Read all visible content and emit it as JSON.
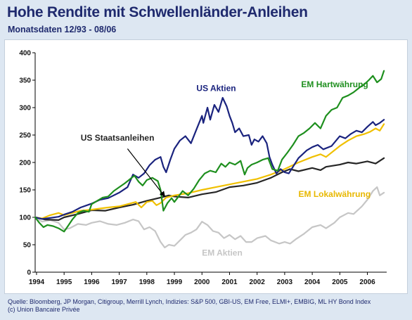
{
  "title": "Hohe Rendite mit Schwellenländer-Anleihen",
  "subtitle": "Monatsdaten 12/93 - 08/06",
  "footer": {
    "source": "Quelle: Bloomberg, JP Morgan, Citigroup, Merrill Lynch, Indizies: S&P 500, GBI-US, EM Free, ELMI+, EMBIG, ML HY Bond Index",
    "copyright": "(c) Union Bancaire Privée"
  },
  "chart_data": {
    "type": "line",
    "title": "Hohe Rendite mit Schwellenländer-Anleihen",
    "subtitle": "Monatsdaten 12/93 - 08/06",
    "xlim": [
      1993.95,
      2006.7
    ],
    "ylim": [
      0,
      400
    ],
    "x_ticks": [
      1994,
      1995,
      1996,
      1997,
      1998,
      1999,
      2000,
      2001,
      2002,
      2003,
      2004,
      2005,
      2006
    ],
    "x_tick_labels": [
      "1994",
      "1995",
      "1996",
      "1997",
      "1998",
      "1999",
      "2000",
      "2001",
      "2002",
      "2003",
      "2004",
      "2005",
      "2006"
    ],
    "y_ticks": [
      0,
      50,
      100,
      150,
      200,
      250,
      300,
      350,
      400
    ],
    "y_tick_labels": [
      "0",
      "50",
      "100",
      "150",
      "200",
      "250",
      "300",
      "350",
      "400"
    ],
    "grid": false,
    "series": [
      {
        "name": "EM Aktien",
        "color": "#c6c6c6",
        "points": [
          [
            1993.95,
            100
          ],
          [
            1994.2,
            92
          ],
          [
            1994.5,
            95
          ],
          [
            1994.8,
            90
          ],
          [
            1995.0,
            78
          ],
          [
            1995.2,
            80
          ],
          [
            1995.5,
            88
          ],
          [
            1995.8,
            86
          ],
          [
            1996.0,
            90
          ],
          [
            1996.3,
            93
          ],
          [
            1996.6,
            88
          ],
          [
            1996.9,
            86
          ],
          [
            1997.2,
            90
          ],
          [
            1997.5,
            96
          ],
          [
            1997.7,
            93
          ],
          [
            1997.9,
            78
          ],
          [
            1998.1,
            82
          ],
          [
            1998.3,
            75
          ],
          [
            1998.5,
            55
          ],
          [
            1998.65,
            45
          ],
          [
            1998.8,
            50
          ],
          [
            1999.0,
            48
          ],
          [
            1999.2,
            58
          ],
          [
            1999.4,
            68
          ],
          [
            1999.6,
            72
          ],
          [
            1999.8,
            78
          ],
          [
            2000.0,
            92
          ],
          [
            2000.2,
            86
          ],
          [
            2000.4,
            75
          ],
          [
            2000.6,
            72
          ],
          [
            2000.8,
            62
          ],
          [
            2001.0,
            68
          ],
          [
            2001.2,
            60
          ],
          [
            2001.4,
            66
          ],
          [
            2001.6,
            55
          ],
          [
            2001.8,
            55
          ],
          [
            2002.0,
            62
          ],
          [
            2002.3,
            66
          ],
          [
            2002.5,
            58
          ],
          [
            2002.8,
            52
          ],
          [
            2003.0,
            55
          ],
          [
            2003.2,
            52
          ],
          [
            2003.4,
            60
          ],
          [
            2003.7,
            70
          ],
          [
            2004.0,
            82
          ],
          [
            2004.3,
            86
          ],
          [
            2004.5,
            80
          ],
          [
            2004.8,
            90
          ],
          [
            2005.0,
            100
          ],
          [
            2005.3,
            108
          ],
          [
            2005.5,
            106
          ],
          [
            2005.8,
            120
          ],
          [
            2006.0,
            132
          ],
          [
            2006.2,
            148
          ],
          [
            2006.35,
            155
          ],
          [
            2006.45,
            140
          ],
          [
            2006.6,
            145
          ]
        ]
      },
      {
        "name": "US Staatsanleihen",
        "color": "#262626",
        "points": [
          [
            1993.95,
            100
          ],
          [
            1994.3,
            96
          ],
          [
            1994.8,
            95
          ],
          [
            1995.0,
            100
          ],
          [
            1995.5,
            106
          ],
          [
            1996.0,
            113
          ],
          [
            1996.5,
            112
          ],
          [
            1997.0,
            118
          ],
          [
            1997.5,
            123
          ],
          [
            1998.0,
            130
          ],
          [
            1998.5,
            136
          ],
          [
            1998.8,
            140
          ],
          [
            1999.0,
            138
          ],
          [
            1999.5,
            136
          ],
          [
            2000.0,
            142
          ],
          [
            2000.5,
            146
          ],
          [
            2001.0,
            155
          ],
          [
            2001.5,
            158
          ],
          [
            2002.0,
            163
          ],
          [
            2002.5,
            172
          ],
          [
            2002.9,
            182
          ],
          [
            2003.2,
            188
          ],
          [
            2003.5,
            184
          ],
          [
            2004.0,
            190
          ],
          [
            2004.3,
            186
          ],
          [
            2004.5,
            192
          ],
          [
            2005.0,
            196
          ],
          [
            2005.3,
            200
          ],
          [
            2005.6,
            198
          ],
          [
            2006.0,
            202
          ],
          [
            2006.3,
            198
          ],
          [
            2006.6,
            208
          ]
        ]
      },
      {
        "name": "EM Lokalwährung",
        "color": "#f0c000",
        "points": [
          [
            1993.95,
            100
          ],
          [
            1994.2,
            98
          ],
          [
            1994.5,
            104
          ],
          [
            1994.8,
            108
          ],
          [
            1995.0,
            104
          ],
          [
            1995.3,
            108
          ],
          [
            1995.6,
            112
          ],
          [
            1996.0,
            114
          ],
          [
            1996.3,
            116
          ],
          [
            1996.6,
            118
          ],
          [
            1997.0,
            120
          ],
          [
            1997.3,
            124
          ],
          [
            1997.6,
            128
          ],
          [
            1997.8,
            118
          ],
          [
            1998.0,
            128
          ],
          [
            1998.2,
            130
          ],
          [
            1998.35,
            122
          ],
          [
            1998.5,
            126
          ],
          [
            1998.7,
            136
          ],
          [
            1999.0,
            140
          ],
          [
            1999.5,
            144
          ],
          [
            2000.0,
            150
          ],
          [
            2000.5,
            155
          ],
          [
            2001.0,
            160
          ],
          [
            2001.5,
            165
          ],
          [
            2002.0,
            170
          ],
          [
            2002.5,
            178
          ],
          [
            2003.0,
            188
          ],
          [
            2003.5,
            200
          ],
          [
            2004.0,
            210
          ],
          [
            2004.3,
            215
          ],
          [
            2004.5,
            210
          ],
          [
            2005.0,
            230
          ],
          [
            2005.3,
            240
          ],
          [
            2005.6,
            248
          ],
          [
            2005.9,
            252
          ],
          [
            2006.1,
            256
          ],
          [
            2006.3,
            262
          ],
          [
            2006.45,
            258
          ],
          [
            2006.6,
            270
          ]
        ]
      },
      {
        "name": "US Aktien",
        "color": "#1a237e",
        "points": [
          [
            1993.95,
            100
          ],
          [
            1994.2,
            97
          ],
          [
            1994.5,
            99
          ],
          [
            1994.8,
            101
          ],
          [
            1995.0,
            105
          ],
          [
            1995.3,
            110
          ],
          [
            1995.6,
            118
          ],
          [
            1996.0,
            125
          ],
          [
            1996.3,
            132
          ],
          [
            1996.6,
            135
          ],
          [
            1997.0,
            145
          ],
          [
            1997.3,
            155
          ],
          [
            1997.5,
            178
          ],
          [
            1997.7,
            172
          ],
          [
            1997.9,
            180
          ],
          [
            1998.1,
            195
          ],
          [
            1998.3,
            205
          ],
          [
            1998.5,
            210
          ],
          [
            1998.6,
            192
          ],
          [
            1998.7,
            182
          ],
          [
            1998.85,
            205
          ],
          [
            1999.0,
            225
          ],
          [
            1999.2,
            240
          ],
          [
            1999.4,
            248
          ],
          [
            1999.6,
            235
          ],
          [
            1999.8,
            260
          ],
          [
            2000.0,
            285
          ],
          [
            2000.05,
            272
          ],
          [
            2000.2,
            300
          ],
          [
            2000.3,
            278
          ],
          [
            2000.45,
            305
          ],
          [
            2000.6,
            292
          ],
          [
            2000.75,
            318
          ],
          [
            2000.9,
            302
          ],
          [
            2001.0,
            285
          ],
          [
            2001.1,
            272
          ],
          [
            2001.2,
            255
          ],
          [
            2001.35,
            262
          ],
          [
            2001.5,
            248
          ],
          [
            2001.7,
            250
          ],
          [
            2001.8,
            232
          ],
          [
            2001.9,
            242
          ],
          [
            2002.05,
            238
          ],
          [
            2002.2,
            248
          ],
          [
            2002.35,
            235
          ],
          [
            2002.45,
            210
          ],
          [
            2002.55,
            196
          ],
          [
            2002.7,
            180
          ],
          [
            2002.85,
            188
          ],
          [
            2003.0,
            182
          ],
          [
            2003.15,
            180
          ],
          [
            2003.3,
            192
          ],
          [
            2003.5,
            208
          ],
          [
            2003.8,
            222
          ],
          [
            2004.0,
            228
          ],
          [
            2004.2,
            232
          ],
          [
            2004.4,
            224
          ],
          [
            2004.7,
            230
          ],
          [
            2004.9,
            242
          ],
          [
            2005.0,
            248
          ],
          [
            2005.2,
            244
          ],
          [
            2005.4,
            252
          ],
          [
            2005.6,
            258
          ],
          [
            2005.8,
            255
          ],
          [
            2006.0,
            265
          ],
          [
            2006.2,
            274
          ],
          [
            2006.3,
            268
          ],
          [
            2006.45,
            272
          ],
          [
            2006.6,
            278
          ]
        ]
      },
      {
        "name": "EM Hartwährung",
        "color": "#1e8f1e",
        "points": [
          [
            1993.95,
            100
          ],
          [
            1994.1,
            90
          ],
          [
            1994.25,
            82
          ],
          [
            1994.4,
            86
          ],
          [
            1994.6,
            84
          ],
          [
            1994.8,
            80
          ],
          [
            1995.0,
            74
          ],
          [
            1995.15,
            85
          ],
          [
            1995.3,
            96
          ],
          [
            1995.5,
            108
          ],
          [
            1995.7,
            112
          ],
          [
            1995.9,
            110
          ],
          [
            1996.0,
            124
          ],
          [
            1996.2,
            130
          ],
          [
            1996.4,
            136
          ],
          [
            1996.6,
            138
          ],
          [
            1996.8,
            148
          ],
          [
            1997.0,
            155
          ],
          [
            1997.2,
            162
          ],
          [
            1997.4,
            170
          ],
          [
            1997.55,
            176
          ],
          [
            1997.7,
            165
          ],
          [
            1997.85,
            158
          ],
          [
            1998.0,
            168
          ],
          [
            1998.2,
            172
          ],
          [
            1998.4,
            166
          ],
          [
            1998.5,
            150
          ],
          [
            1998.6,
            112
          ],
          [
            1998.75,
            126
          ],
          [
            1998.9,
            135
          ],
          [
            1999.0,
            128
          ],
          [
            1999.15,
            138
          ],
          [
            1999.3,
            148
          ],
          [
            1999.5,
            140
          ],
          [
            1999.7,
            152
          ],
          [
            1999.9,
            168
          ],
          [
            2000.1,
            180
          ],
          [
            2000.3,
            185
          ],
          [
            2000.5,
            182
          ],
          [
            2000.7,
            198
          ],
          [
            2000.85,
            192
          ],
          [
            2001.0,
            200
          ],
          [
            2001.2,
            196
          ],
          [
            2001.4,
            203
          ],
          [
            2001.55,
            178
          ],
          [
            2001.65,
            190
          ],
          [
            2001.8,
            196
          ],
          [
            2002.0,
            200
          ],
          [
            2002.2,
            205
          ],
          [
            2002.4,
            208
          ],
          [
            2002.55,
            188
          ],
          [
            2002.75,
            185
          ],
          [
            2002.9,
            205
          ],
          [
            2003.1,
            218
          ],
          [
            2003.3,
            232
          ],
          [
            2003.5,
            248
          ],
          [
            2003.7,
            254
          ],
          [
            2003.9,
            262
          ],
          [
            2004.1,
            272
          ],
          [
            2004.3,
            262
          ],
          [
            2004.5,
            285
          ],
          [
            2004.7,
            296
          ],
          [
            2004.9,
            300
          ],
          [
            2005.1,
            318
          ],
          [
            2005.3,
            322
          ],
          [
            2005.5,
            328
          ],
          [
            2005.7,
            336
          ],
          [
            2005.9,
            343
          ],
          [
            2006.05,
            350
          ],
          [
            2006.2,
            358
          ],
          [
            2006.35,
            346
          ],
          [
            2006.5,
            352
          ],
          [
            2006.6,
            367
          ]
        ]
      }
    ],
    "annotations": [
      {
        "text": "US Aktien",
        "color": "#1a237e",
        "x": 1999.8,
        "y": 330
      },
      {
        "text": "EM Hartwährung",
        "color": "#1e8f1e",
        "x": 2003.6,
        "y": 337
      },
      {
        "text": "US Staatsanleihen",
        "color": "#262626",
        "x": 1995.6,
        "y": 240
      },
      {
        "text": "EM Lokalwährung",
        "color": "#e8b800",
        "x": 2003.5,
        "y": 137
      },
      {
        "text": "EM Aktien",
        "color": "#c6c6c6",
        "x": 2000.0,
        "y": 30
      }
    ],
    "arrow": {
      "from": [
        1997.3,
        225
      ],
      "to": [
        1998.65,
        138
      ]
    }
  }
}
